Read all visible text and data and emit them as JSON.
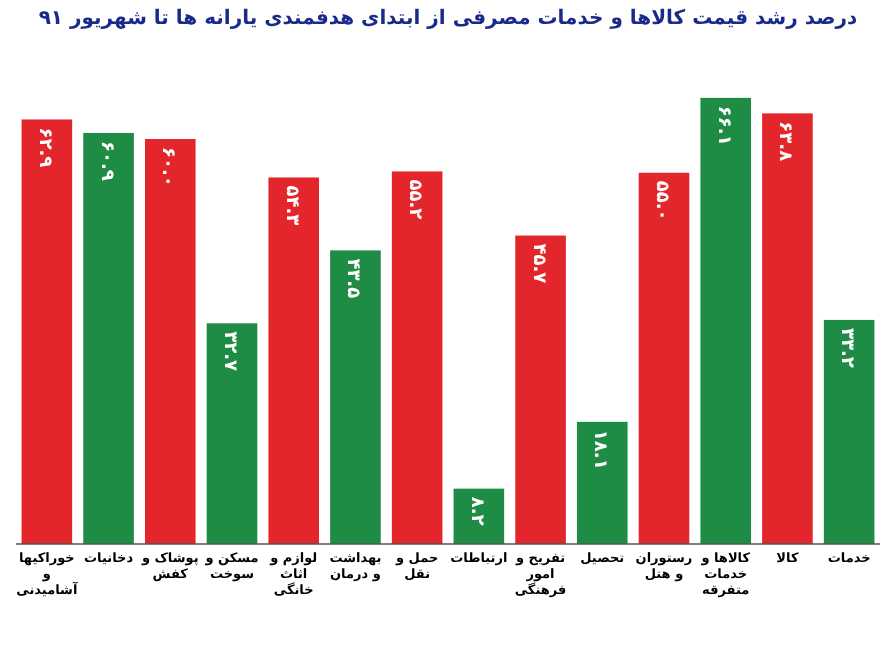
{
  "chart_data": {
    "type": "bar",
    "title": "درصد رشد قیمت کالاها و خدمات مصرفی از ابتدای هدفمندی یارانه ها تا شهریور ۹۱",
    "categories": [
      "خوراکیها و آشامیدنی",
      "دخانیات",
      "پوشاک و کفش",
      "مسکن و سوخت",
      "لوازم و اثاث خانگی",
      "بهداشت و درمان",
      "حمل و نقل",
      "ارتباطات",
      "تفریح و امور فرهنگی",
      "تحصیل",
      "رستوران و هتل",
      "کالاها و خدمات متفرقه",
      "کالا",
      "خدمات"
    ],
    "values": [
      62.9,
      60.9,
      60.0,
      32.7,
      54.3,
      43.5,
      55.2,
      8.2,
      45.7,
      18.1,
      55.0,
      66.1,
      63.8,
      33.2
    ],
    "value_labels": [
      "۶۲.۹",
      "۶۰.۹",
      "۶۰.۰",
      "۳۲.۷",
      "۵۴.۳",
      "۴۳.۵",
      "۵۵.۲",
      "۸.۲",
      "۴۵.۷",
      "۱۸.۱",
      "۵۵.۰",
      "۶۶.۱",
      "۶۳.۸",
      "۳۳.۲"
    ],
    "colors": [
      "#e3262b",
      "#1f8c45",
      "#e3262b",
      "#1f8c45",
      "#e3262b",
      "#1f8c45",
      "#e3262b",
      "#1f8c45",
      "#e3262b",
      "#1f8c45",
      "#e3262b",
      "#1f8c45",
      "#e3262b",
      "#1f8c45"
    ]
  }
}
